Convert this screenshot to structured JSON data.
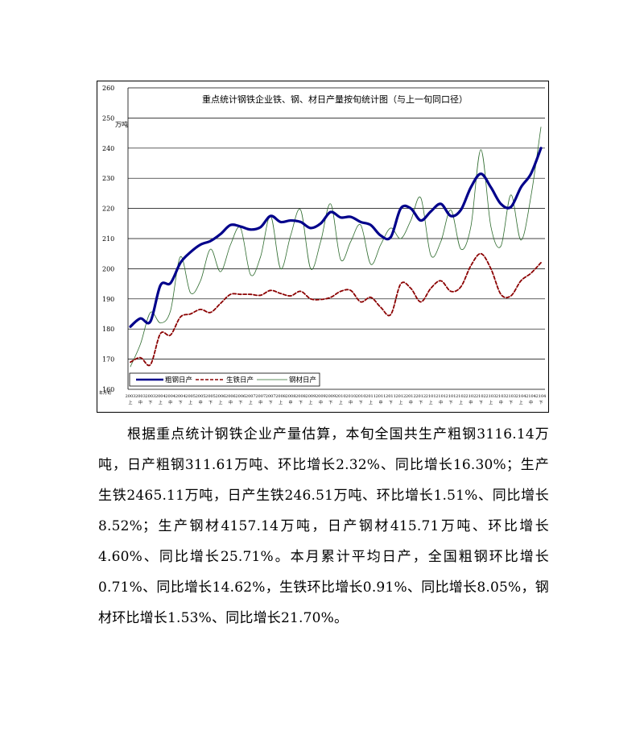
{
  "chart_data": {
    "type": "line",
    "title": "重点统计钢铁企业铁、钢、材日产量按旬统计图（与上一旬同口径）",
    "ylabel": "万吨",
    "xlabel": "年月旬",
    "ylim": [
      160,
      260
    ],
    "yticks": [
      160,
      170,
      180,
      190,
      200,
      210,
      220,
      230,
      240,
      250,
      260
    ],
    "grid": true,
    "legend_position": "bottom-left",
    "categories": [
      "2003",
      "2003",
      "2003",
      "2004",
      "2004",
      "2004",
      "2005",
      "2005",
      "2005",
      "2006",
      "2006",
      "2006",
      "2007",
      "2007",
      "2007",
      "2008",
      "2008",
      "2008",
      "2009",
      "2009",
      "2009",
      "2010",
      "2010",
      "2010",
      "2011",
      "2011",
      "2011",
      "2012",
      "2012",
      "2012",
      "2101",
      "2101",
      "2101",
      "2102",
      "2102",
      "2102",
      "2103",
      "2103",
      "2103",
      "2104",
      "2104",
      "2104"
    ],
    "subcategories": [
      "上",
      "中",
      "下",
      "上",
      "中",
      "下",
      "上",
      "中",
      "下",
      "上",
      "中",
      "下",
      "上",
      "中",
      "下",
      "上",
      "中",
      "下",
      "上",
      "中",
      "下",
      "上",
      "中",
      "下",
      "上",
      "中",
      "下",
      "上",
      "中",
      "下",
      "上",
      "中",
      "下",
      "上",
      "中",
      "下",
      "上",
      "中",
      "下",
      "上",
      "中",
      "下"
    ],
    "series": [
      {
        "name": "粗钢日产",
        "color": "#00008B",
        "style": "solid-thick",
        "values": [
          180.8,
          183.5,
          182.5,
          194.5,
          195.2,
          202,
          205.5,
          208,
          209.2,
          211.5,
          214.5,
          214,
          213,
          213.8,
          217.5,
          215.5,
          216,
          215.5,
          213.5,
          215,
          218.8,
          217,
          217.2,
          215.5,
          214.5,
          211,
          210.5,
          220,
          220,
          216,
          219,
          221.5,
          217.5,
          219.5,
          227,
          231.5,
          227,
          221.5,
          220.5,
          227,
          231.5,
          240
        ]
      },
      {
        "name": "生铁日产",
        "color": "#8B0000",
        "style": "dashed",
        "values": [
          169,
          170.5,
          168.2,
          178.5,
          178,
          184,
          185,
          186.5,
          185.5,
          188.5,
          191.5,
          191.5,
          191.5,
          191.2,
          192.8,
          191.8,
          191,
          192.5,
          190,
          189.8,
          190.5,
          192.5,
          192.8,
          189,
          190.5,
          187.2,
          184.8,
          195,
          193.5,
          189,
          193.5,
          196,
          192.5,
          194,
          201,
          205,
          200,
          191.5,
          191,
          196,
          198.5,
          202
        ]
      },
      {
        "name": "钢材日产",
        "color": "#2E6B2E",
        "style": "thin",
        "values": [
          167.5,
          175,
          185.5,
          182,
          186,
          204,
          192,
          196,
          206.5,
          199,
          208,
          213.5,
          198,
          204,
          217.5,
          200,
          211,
          219.5,
          200,
          209,
          221.5,
          203,
          209,
          214.5,
          201.5,
          208,
          213.5,
          210,
          216,
          223.5,
          204.5,
          209,
          219.5,
          206.5,
          214,
          239.5,
          214,
          207.5,
          224.5,
          209.5,
          224,
          247
        ]
      }
    ]
  },
  "paragraph": "根据重点统计钢铁企业产量估算，本旬全国共生产粗钢3116.14万吨，日产粗钢311.61万吨、环比增长2.32%、同比增长16.30%；生产生铁2465.11万吨，日产生铁246.51万吨、环比增长1.51%、同比增长8.52%；生产钢材4157.14万吨，日产钢材415.71万吨、环比增长4.60%、同比增长25.71%。本月累计平均日产，全国粗钢环比增长0.71%、同比增长14.62%，生铁环比增长0.91%、同比增长8.05%，钢材环比增长1.53%、同比增长21.70%。"
}
